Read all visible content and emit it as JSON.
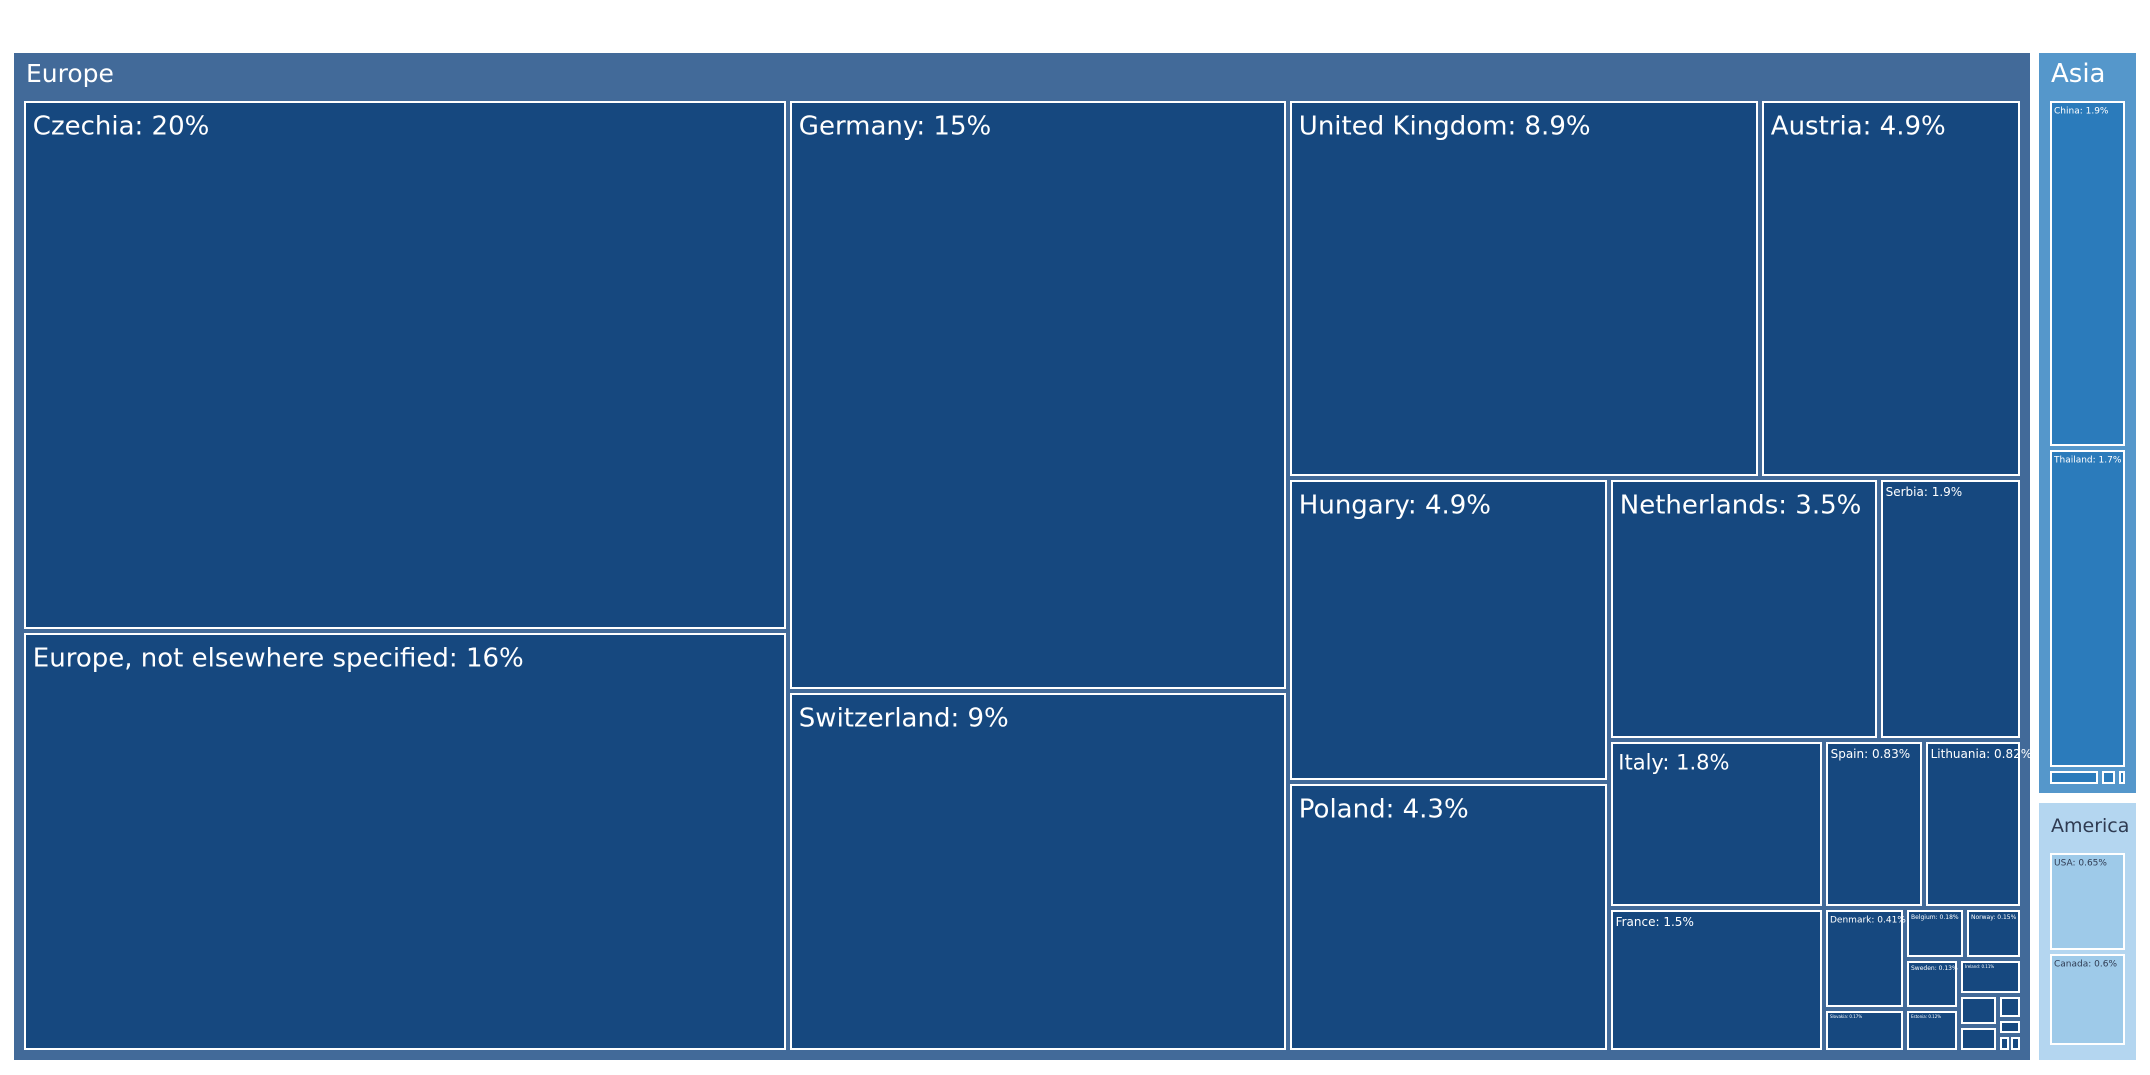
{
  "chart_data": {
    "type": "treemap",
    "title": "",
    "groups": [
      {
        "name": "Europe",
        "color": "#426a99",
        "leaf_color": "#16487f",
        "label_color": "#ffffff",
        "children": [
          {
            "label": "Czechia: 20%",
            "name": "Czechia",
            "value": 20
          },
          {
            "label": "Europe, not elsewhere specified: 16%",
            "name": "Europe, not elsewhere specified",
            "value": 16
          },
          {
            "label": "Germany: 15%",
            "name": "Germany",
            "value": 15
          },
          {
            "label": "Switzerland: 9%",
            "name": "Switzerland",
            "value": 9
          },
          {
            "label": "United Kingdom: 8.9%",
            "name": "United Kingdom",
            "value": 8.9
          },
          {
            "label": "Austria: 4.9%",
            "name": "Austria",
            "value": 4.9
          },
          {
            "label": "Hungary: 4.9%",
            "name": "Hungary",
            "value": 4.9
          },
          {
            "label": "Poland: 4.3%",
            "name": "Poland",
            "value": 4.3
          },
          {
            "label": "Netherlands: 3.5%",
            "name": "Netherlands",
            "value": 3.5
          },
          {
            "label": "Serbia: 1.9%",
            "name": "Serbia",
            "value": 1.9
          },
          {
            "label": "Italy: 1.8%",
            "name": "Italy",
            "value": 1.8
          },
          {
            "label": "Spain: 0.83%",
            "name": "Spain",
            "value": 0.83
          },
          {
            "label": "Lithuania: 0.82%",
            "name": "Lithuania",
            "value": 0.82
          },
          {
            "label": "France: 1.5%",
            "name": "France",
            "value": 1.5
          },
          {
            "label": "Denmark: 0.41%",
            "name": "Denmark",
            "value": 0.41
          },
          {
            "label": "Belgium: 0.18%",
            "name": "Belgium",
            "value": 0.18
          },
          {
            "label": "Norway: 0.15%",
            "name": "Norway",
            "value": 0.15
          },
          {
            "label": "Sweden: 0.13%",
            "name": "Sweden",
            "value": 0.13
          },
          {
            "label": "Ireland: 0.11%",
            "name": "Ireland",
            "value": 0.11
          },
          {
            "label": "Slovakia: 0.17%",
            "name": "Slovakia",
            "value": 0.17
          },
          {
            "label": "Estonia: 0.12%",
            "name": "Estonia",
            "value": 0.12
          },
          {
            "label": "",
            "name": "",
            "value": 0.06
          },
          {
            "label": "",
            "name": "",
            "value": 0.04
          },
          {
            "label": "",
            "name": "",
            "value": 0.05
          },
          {
            "label": "",
            "name": "",
            "value": 0.03
          },
          {
            "label": "",
            "name": "",
            "value": 0.02
          },
          {
            "label": "",
            "name": "",
            "value": 0.02
          }
        ]
      },
      {
        "name": "Asia",
        "color": "#5597cb",
        "leaf_color": "#2b7bbb",
        "label_color": "#ffffff",
        "children": [
          {
            "label": "China: 1.9%",
            "name": "China",
            "value": 1.9
          },
          {
            "label": "Thailand: 1.7%",
            "name": "Thailand",
            "value": 1.7
          },
          {
            "label": "",
            "name": "",
            "value": 0.2
          },
          {
            "label": "",
            "name": "",
            "value": 0.05
          },
          {
            "label": "",
            "name": "",
            "value": 0.03
          }
        ]
      },
      {
        "name": "America",
        "color": "#b4d6f0",
        "leaf_color": "#9ecae9",
        "label_color": "#2f3b52",
        "children": [
          {
            "label": "USA: 0.65%",
            "name": "USA",
            "value": 0.65
          },
          {
            "label": "Canada: 0.6%",
            "name": "Canada",
            "value": 0.6
          }
        ]
      }
    ]
  }
}
